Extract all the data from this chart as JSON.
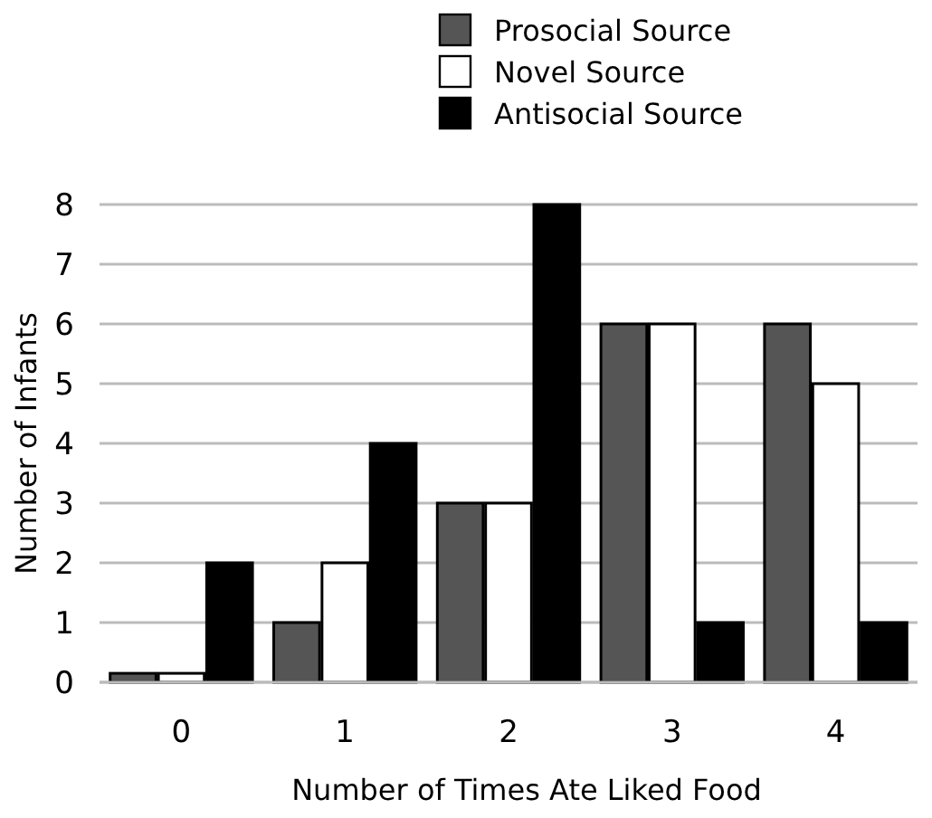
{
  "chart_data": {
    "type": "bar",
    "xlabel": "Number of Times Ate Liked Food",
    "ylabel": "Number of Infants",
    "categories": [
      "0",
      "1",
      "2",
      "3",
      "4"
    ],
    "series": [
      {
        "name": "Prosocial Source",
        "color": "#555555",
        "values": [
          0.15,
          1,
          3,
          6,
          6
        ]
      },
      {
        "name": "Novel Source",
        "color": "#ffffff",
        "values": [
          0.15,
          2,
          3,
          6,
          5
        ]
      },
      {
        "name": "Antisocial Source",
        "color": "#000000",
        "values": [
          2,
          4,
          8,
          1,
          1
        ]
      }
    ],
    "ylim": [
      0,
      8
    ],
    "yticks": [
      0,
      1,
      2,
      3,
      4,
      5,
      6,
      7,
      8
    ],
    "grid": "y",
    "legend": "top"
  }
}
